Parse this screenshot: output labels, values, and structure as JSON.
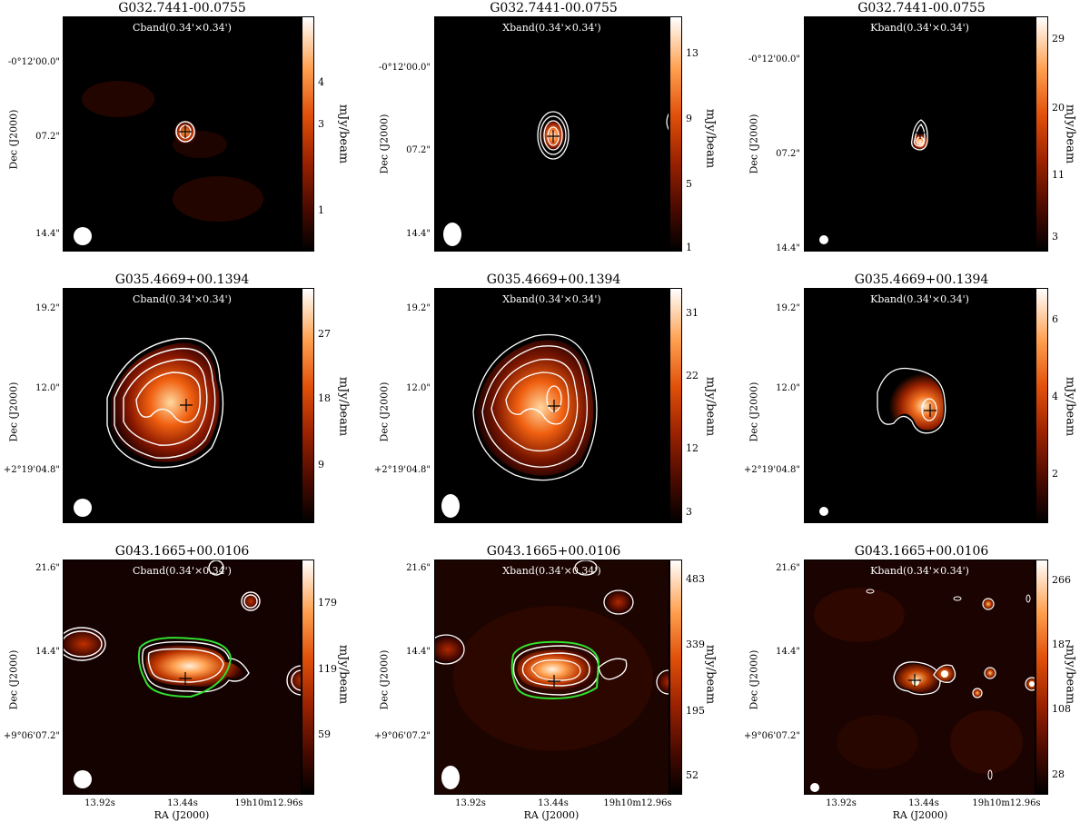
{
  "rows": [
    {
      "source": "G032.7441-00.0755",
      "dec_ticks": [
        "-0°12'00.0\"",
        "07.2\"",
        "14.4\""
      ],
      "dec_label": "Dec (J2000)",
      "panels": [
        {
          "band": "Cband(0.34'×0.34')",
          "colorbar_ticks": [
            "4",
            "3",
            "1"
          ],
          "colorbar_label": "mJy/beam"
        },
        {
          "band": "Xband(0.34'×0.34')",
          "colorbar_ticks": [
            "13",
            "9",
            "5",
            "1"
          ],
          "colorbar_label": "mJy/beam"
        },
        {
          "band": "Kband(0.34'×0.34')",
          "colorbar_ticks": [
            "29",
            "20",
            "11",
            "3"
          ],
          "colorbar_label": "mJy/beam"
        }
      ]
    },
    {
      "source": "G035.4669+00.1394",
      "dec_ticks": [
        "19.2\"",
        "12.0\"",
        "+2°19'04.8\""
      ],
      "dec_label": "Dec (J2000)",
      "panels": [
        {
          "band": "Cband(0.34'×0.34')",
          "colorbar_ticks": [
            "27",
            "18",
            "9"
          ],
          "colorbar_label": "mJy/beam"
        },
        {
          "band": "Xband(0.34'×0.34')",
          "colorbar_ticks": [
            "31",
            "22",
            "12",
            "3"
          ],
          "colorbar_label": "mJy/beam"
        },
        {
          "band": "Kband(0.34'×0.34')",
          "colorbar_ticks": [
            "6",
            "4",
            "2"
          ],
          "colorbar_label": "mJy/beam"
        }
      ]
    },
    {
      "source": "G043.1665+00.0106",
      "dec_ticks": [
        "21.6\"",
        "14.4\"",
        "+9°06'07.2\""
      ],
      "dec_label": "Dec (J2000)",
      "panels": [
        {
          "band": "Cband(0.34'×0.34')",
          "colorbar_ticks": [
            "179",
            "119",
            "59"
          ],
          "colorbar_label": "mJy/beam"
        },
        {
          "band": "Xband(0.34'×0.34')",
          "colorbar_ticks": [
            "483",
            "339",
            "195",
            "52"
          ],
          "colorbar_label": "mJy/beam"
        },
        {
          "band": "Kband(0.34'×0.34')",
          "colorbar_ticks": [
            "266",
            "187",
            "108",
            "28"
          ],
          "colorbar_label": "mJy/beam"
        }
      ]
    }
  ],
  "ra_ticks": [
    "13.92s",
    "13.44s",
    "19h10m12.96s"
  ],
  "ra_label": "RA (J2000)"
}
